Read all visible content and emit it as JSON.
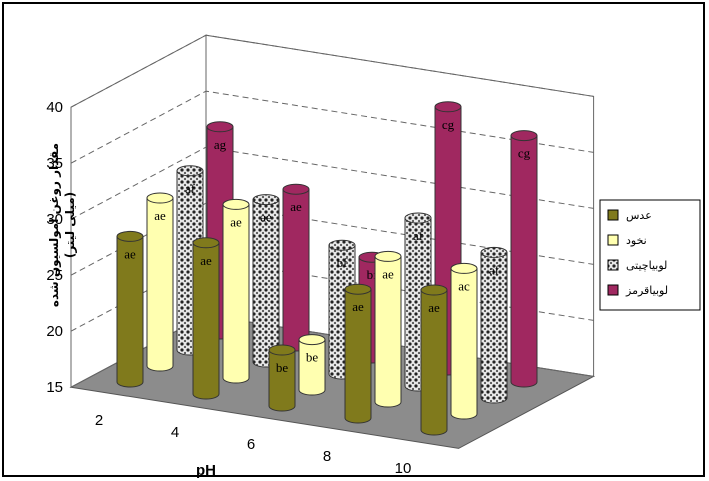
{
  "chart_data": {
    "type": "bar",
    "style": "3d-cylinder",
    "xlabel": "pH",
    "ylabel_lines": [
      "مقدار روغن امولسیون شده",
      "(میلی لیتر)"
    ],
    "categories": [
      "2",
      "4",
      "6",
      "8",
      "10"
    ],
    "ylim": [
      15,
      40
    ],
    "yticks": [
      15,
      20,
      25,
      30,
      35,
      40
    ],
    "grid": true,
    "legend_position": "right",
    "series": [
      {
        "name": "عدس",
        "color": "#807a1c",
        "values": [
          28,
          28.5,
          20,
          26.5,
          27.5
        ],
        "labels": [
          "ae",
          "ae",
          "be",
          "ae",
          "ae"
        ]
      },
      {
        "name": "نخود",
        "color": "#ffffb0",
        "values": [
          30,
          30.5,
          19.5,
          28,
          28
        ],
        "labels": [
          "ae",
          "ae",
          "be",
          "ae",
          "ac"
        ]
      },
      {
        "name": "لوبیاچیتی",
        "color": "#c8c8c8",
        "values": [
          31,
          29.5,
          26.5,
          30,
          28
        ],
        "labels": [
          "af",
          "ae",
          "bf",
          "af",
          "af"
        ]
      },
      {
        "name": "لوبیاقرمز",
        "color": "#a02860",
        "values": [
          33.5,
          29,
          24,
          38.5,
          37
        ],
        "labels": [
          "ag",
          "ae",
          "bf",
          "cg",
          "cg"
        ]
      }
    ]
  }
}
